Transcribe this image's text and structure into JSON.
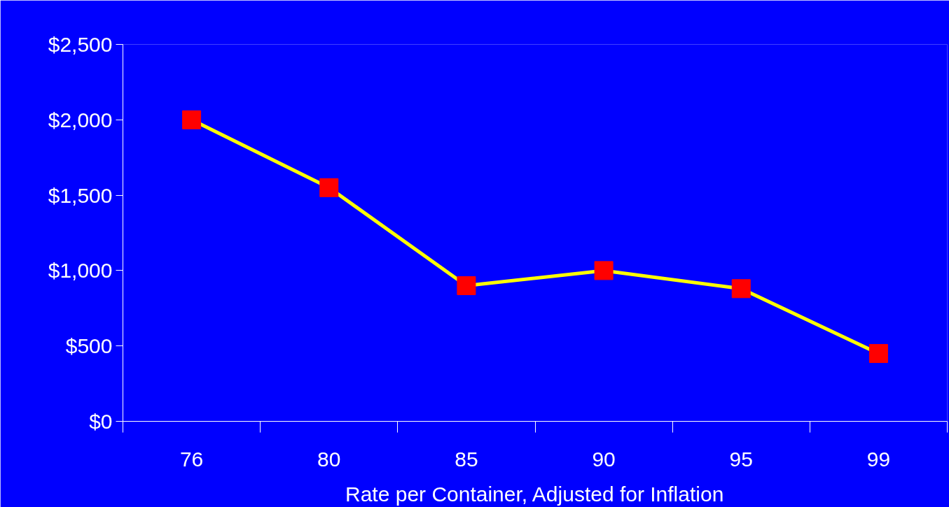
{
  "chart_data": {
    "type": "line",
    "xlabel": "Rate per Container, Adjusted for Inflation",
    "categories": [
      "76",
      "80",
      "85",
      "90",
      "95",
      "99"
    ],
    "series": [
      {
        "color": "#ffff00",
        "colors": [
          "#ff0000",
          "#ff0000",
          "#ff0000",
          "#ff0000",
          "#ff0000",
          "#ff0000"
        ],
        "values": [
          2000,
          1550,
          900,
          1000,
          880,
          450
        ]
      }
    ],
    "ylim": [
      0,
      2500
    ],
    "yticks": [
      {
        "value": 0,
        "label": "$0"
      },
      {
        "value": 500,
        "label": "$500"
      },
      {
        "value": 1000,
        "label": "$1,000"
      },
      {
        "value": 1500,
        "label": "$1,500"
      },
      {
        "value": 2000,
        "label": "$2,000"
      },
      {
        "value": 2500,
        "label": "$2,500"
      }
    ],
    "grid": false,
    "marker": "square",
    "line_style": "solid"
  }
}
